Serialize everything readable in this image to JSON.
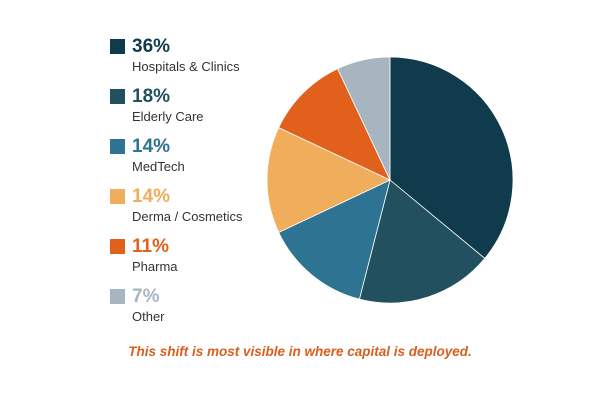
{
  "chart_data": {
    "type": "pie",
    "categories": [
      "Hospitals & Clinics",
      "Elderly Care",
      "MedTech",
      "Derma / Cosmetics",
      "Pharma",
      "Other"
    ],
    "values": [
      36,
      18,
      14,
      14,
      11,
      7
    ],
    "value_labels": [
      "36%",
      "18%",
      "14%",
      "14%",
      "11%",
      "7%"
    ],
    "colors": [
      "#0f3b4c",
      "#22505f",
      "#2e7391",
      "#f0ad5b",
      "#e0601c",
      "#a6b5bf"
    ],
    "legend_text_colors": [
      "#0f3b4c",
      "#22505f",
      "#2e7391",
      "#f0ad5b",
      "#e0601c",
      "#a6b5bf"
    ],
    "legend_position": "left",
    "start_angle_deg": 0,
    "direction": "clockwise"
  },
  "caption": "This shift is most visible in where capital is deployed."
}
